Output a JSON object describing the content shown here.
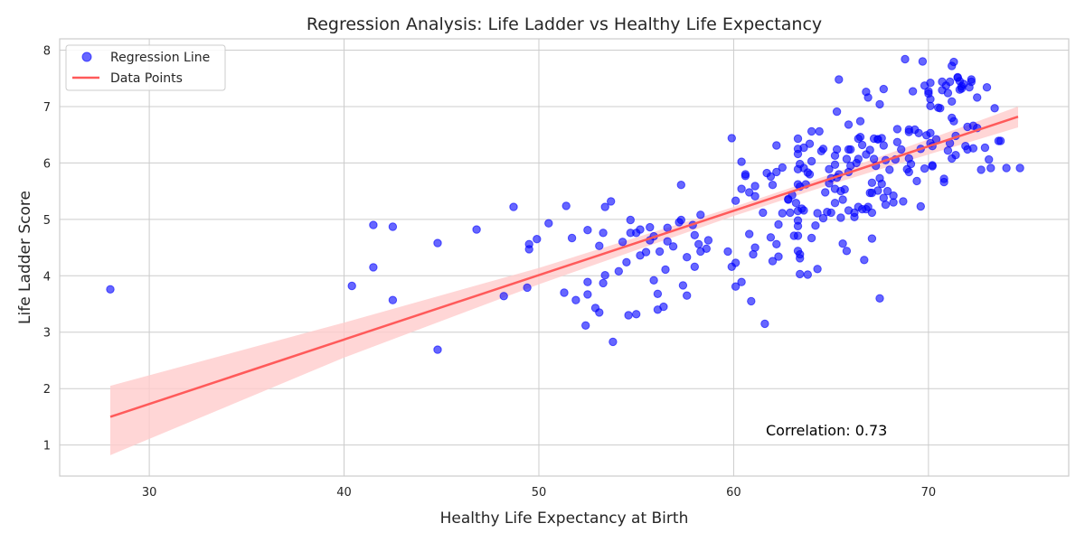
{
  "chart_data": {
    "type": "scatter",
    "title": "Regression Analysis: Life Ladder vs Healthy Life Expectancy",
    "xlabel": "Healthy Life Expectancy at Birth",
    "ylabel": "Life Ladder Score",
    "xlim": [
      25.4,
      77.2
    ],
    "ylim": [
      0.45,
      8.2
    ],
    "xticks": [
      30,
      40,
      50,
      60,
      70
    ],
    "yticks": [
      1,
      2,
      3,
      4,
      5,
      6,
      7,
      8
    ],
    "grid": true,
    "legend": {
      "placement": "top-left",
      "entries": [
        {
          "label": "Regression Line",
          "marker": "scatter"
        },
        {
          "label": "Data Points",
          "marker": "line"
        }
      ]
    },
    "annotation": "Correlation: 0.73",
    "colors": {
      "points": "#0000ff",
      "line": "#ff5a5a",
      "band": "#ffcccc"
    },
    "regression": {
      "x": [
        28.0,
        74.6
      ],
      "y": [
        1.5,
        6.82
      ],
      "ci_lower": [
        0.82,
        6.63
      ],
      "ci_upper": [
        2.05,
        7.0
      ],
      "ci_mid": [
        [
          28.0,
          1.5,
          0.82,
          2.05
        ],
        [
          40.0,
          2.86,
          2.55,
          3.17
        ],
        [
          50.0,
          4.0,
          3.85,
          4.14
        ],
        [
          60.0,
          5.14,
          5.06,
          5.22
        ],
        [
          65.0,
          5.71,
          5.62,
          5.8
        ],
        [
          70.0,
          6.28,
          6.15,
          6.42
        ],
        [
          74.6,
          6.82,
          6.63,
          7.0
        ]
      ]
    },
    "points": [
      [
        28.0,
        3.76
      ],
      [
        40.4,
        3.82
      ],
      [
        41.5,
        4.9
      ],
      [
        41.5,
        4.15
      ],
      [
        42.5,
        4.87
      ],
      [
        42.5,
        3.57
      ],
      [
        44.8,
        4.58
      ],
      [
        44.8,
        2.69
      ],
      [
        46.8,
        4.82
      ],
      [
        48.2,
        3.64
      ],
      [
        48.7,
        5.22
      ],
      [
        49.4,
        3.79
      ],
      [
        49.5,
        4.47
      ],
      [
        49.5,
        4.56
      ],
      [
        49.9,
        4.65
      ],
      [
        50.5,
        4.93
      ],
      [
        51.3,
        3.7
      ],
      [
        51.4,
        5.24
      ],
      [
        51.7,
        4.67
      ],
      [
        51.9,
        3.57
      ],
      [
        52.4,
        3.12
      ],
      [
        52.5,
        3.89
      ],
      [
        52.5,
        4.81
      ],
      [
        52.5,
        3.67
      ],
      [
        52.9,
        3.43
      ],
      [
        53.1,
        4.53
      ],
      [
        53.1,
        3.35
      ],
      [
        53.3,
        3.87
      ],
      [
        53.3,
        4.76
      ],
      [
        53.4,
        4.01
      ],
      [
        53.4,
        5.22
      ],
      [
        53.7,
        5.32
      ],
      [
        53.8,
        2.83
      ],
      [
        54.1,
        4.08
      ],
      [
        54.3,
        4.6
      ],
      [
        54.5,
        4.24
      ],
      [
        54.6,
        3.3
      ],
      [
        54.7,
        4.99
      ],
      [
        54.7,
        4.76
      ],
      [
        55.0,
        4.76
      ],
      [
        55.0,
        3.32
      ],
      [
        55.2,
        4.36
      ],
      [
        55.2,
        4.82
      ],
      [
        55.5,
        4.42
      ],
      [
        55.7,
        4.86
      ],
      [
        55.7,
        4.63
      ],
      [
        55.9,
        3.92
      ],
      [
        55.9,
        4.7
      ],
      [
        56.1,
        3.68
      ],
      [
        56.1,
        3.4
      ],
      [
        56.2,
        4.43
      ],
      [
        56.4,
        3.45
      ],
      [
        56.5,
        4.11
      ],
      [
        56.6,
        4.61
      ],
      [
        56.6,
        4.85
      ],
      [
        56.9,
        4.52
      ],
      [
        57.2,
        4.95
      ],
      [
        57.3,
        5.61
      ],
      [
        57.3,
        4.99
      ],
      [
        57.4,
        3.83
      ],
      [
        57.6,
        4.33
      ],
      [
        57.6,
        3.65
      ],
      [
        57.9,
        4.9
      ],
      [
        58.0,
        4.16
      ],
      [
        58.0,
        4.72
      ],
      [
        58.2,
        4.56
      ],
      [
        58.3,
        4.43
      ],
      [
        58.3,
        5.08
      ],
      [
        58.6,
        4.48
      ],
      [
        58.7,
        4.63
      ],
      [
        59.7,
        4.43
      ],
      [
        59.9,
        6.44
      ],
      [
        59.9,
        4.16
      ],
      [
        60.1,
        4.23
      ],
      [
        60.1,
        3.81
      ],
      [
        60.1,
        5.33
      ],
      [
        60.4,
        3.89
      ],
      [
        60.4,
        6.02
      ],
      [
        60.4,
        5.54
      ],
      [
        60.6,
        5.8
      ],
      [
        60.6,
        5.77
      ],
      [
        60.8,
        4.74
      ],
      [
        60.8,
        5.48
      ],
      [
        60.9,
        3.55
      ],
      [
        61.0,
        4.38
      ],
      [
        61.1,
        5.59
      ],
      [
        61.1,
        5.41
      ],
      [
        61.1,
        4.5
      ],
      [
        61.5,
        5.12
      ],
      [
        61.6,
        3.15
      ],
      [
        61.7,
        5.82
      ],
      [
        61.9,
        4.68
      ],
      [
        61.9,
        5.76
      ],
      [
        62.0,
        5.61
      ],
      [
        62.0,
        4.26
      ],
      [
        62.2,
        5.84
      ],
      [
        62.2,
        6.31
      ],
      [
        62.2,
        4.56
      ],
      [
        62.3,
        4.91
      ],
      [
        62.3,
        4.34
      ],
      [
        62.5,
        5.92
      ],
      [
        62.5,
        5.11
      ],
      [
        62.8,
        5.35
      ],
      [
        62.8,
        5.36
      ],
      [
        62.9,
        5.12
      ],
      [
        63.0,
        5.43
      ],
      [
        63.1,
        4.71
      ],
      [
        63.2,
        5.29
      ],
      [
        63.3,
        6.43
      ],
      [
        63.3,
        6.25
      ],
      [
        63.3,
        6.16
      ],
      [
        63.3,
        5.89
      ],
      [
        63.3,
        5.62
      ],
      [
        63.3,
        5.15
      ],
      [
        63.3,
        4.98
      ],
      [
        63.3,
        4.88
      ],
      [
        63.3,
        4.71
      ],
      [
        63.3,
        4.44
      ],
      [
        63.4,
        5.58
      ],
      [
        63.4,
        5.98
      ],
      [
        63.4,
        4.38
      ],
      [
        63.4,
        4.31
      ],
      [
        63.4,
        4.03
      ],
      [
        63.5,
        5.19
      ],
      [
        63.6,
        6.27
      ],
      [
        63.6,
        5.91
      ],
      [
        63.6,
        5.16
      ],
      [
        63.7,
        5.62
      ],
      [
        63.8,
        4.02
      ],
      [
        63.8,
        5.83
      ],
      [
        63.9,
        6.34
      ],
      [
        63.9,
        5.8
      ],
      [
        64.0,
        4.67
      ],
      [
        64.0,
        6.03
      ],
      [
        64.0,
        6.56
      ],
      [
        64.2,
        4.89
      ],
      [
        64.3,
        5.11
      ],
      [
        64.3,
        4.12
      ],
      [
        64.4,
        6.56
      ],
      [
        64.5,
        6.21
      ],
      [
        64.6,
        5.02
      ],
      [
        64.6,
        6.25
      ],
      [
        64.7,
        5.48
      ],
      [
        64.8,
        5.13
      ],
      [
        64.9,
        5.89
      ],
      [
        64.9,
        5.64
      ],
      [
        65.0,
        5.73
      ],
      [
        65.0,
        5.12
      ],
      [
        65.2,
        5.54
      ],
      [
        65.2,
        5.97
      ],
      [
        65.2,
        6.13
      ],
      [
        65.2,
        5.29
      ],
      [
        65.3,
        6.24
      ],
      [
        65.3,
        6.91
      ],
      [
        65.3,
        5.74
      ],
      [
        65.4,
        7.48
      ],
      [
        65.4,
        5.8
      ],
      [
        65.5,
        5.5
      ],
      [
        65.5,
        5.03
      ],
      [
        65.6,
        4.57
      ],
      [
        65.6,
        5.35
      ],
      [
        65.7,
        5.53
      ],
      [
        65.8,
        4.44
      ],
      [
        65.8,
        6.07
      ],
      [
        65.9,
        6.68
      ],
      [
        65.9,
        5.84
      ],
      [
        65.9,
        6.24
      ],
      [
        65.9,
        5.16
      ],
      [
        66.0,
        5.95
      ],
      [
        66.0,
        6.24
      ],
      [
        66.2,
        5.12
      ],
      [
        66.2,
        5.04
      ],
      [
        66.3,
        6.0
      ],
      [
        66.4,
        6.07
      ],
      [
        66.4,
        6.43
      ],
      [
        66.4,
        5.22
      ],
      [
        66.5,
        6.46
      ],
      [
        66.5,
        6.74
      ],
      [
        66.6,
        5.18
      ],
      [
        66.6,
        6.32
      ],
      [
        66.7,
        4.28
      ],
      [
        66.8,
        6.15
      ],
      [
        66.8,
        7.26
      ],
      [
        66.8,
        5.18
      ],
      [
        66.9,
        7.16
      ],
      [
        66.9,
        5.22
      ],
      [
        67.0,
        6.23
      ],
      [
        67.0,
        5.47
      ],
      [
        67.1,
        5.47
      ],
      [
        67.1,
        5.65
      ],
      [
        67.1,
        4.66
      ],
      [
        67.1,
        5.12
      ],
      [
        67.2,
        6.43
      ],
      [
        67.2,
        6.07
      ],
      [
        67.3,
        5.95
      ],
      [
        67.4,
        6.42
      ],
      [
        67.4,
        5.51
      ],
      [
        67.4,
        6.42
      ],
      [
        67.5,
        7.04
      ],
      [
        67.5,
        3.6
      ],
      [
        67.5,
        5.73
      ],
      [
        67.6,
        6.44
      ],
      [
        67.6,
        5.63
      ],
      [
        67.7,
        6.31
      ],
      [
        67.7,
        7.31
      ],
      [
        67.7,
        5.38
      ],
      [
        67.8,
        6.05
      ],
      [
        67.8,
        5.26
      ],
      [
        67.9,
        5.5
      ],
      [
        68.0,
        5.88
      ],
      [
        68.2,
        5.3
      ],
      [
        68.2,
        5.42
      ],
      [
        68.3,
        6.06
      ],
      [
        68.4,
        6.6
      ],
      [
        68.4,
        6.37
      ],
      [
        68.6,
        6.24
      ],
      [
        68.7,
        5.32
      ],
      [
        68.8,
        7.84
      ],
      [
        68.9,
        5.89
      ],
      [
        69.0,
        6.55
      ],
      [
        69.0,
        6.59
      ],
      [
        69.0,
        5.84
      ],
      [
        69.0,
        6.08
      ],
      [
        69.1,
        5.98
      ],
      [
        69.2,
        7.27
      ],
      [
        69.3,
        6.59
      ],
      [
        69.4,
        5.68
      ],
      [
        69.5,
        6.53
      ],
      [
        69.6,
        5.23
      ],
      [
        69.6,
        6.25
      ],
      [
        69.7,
        7.8
      ],
      [
        69.8,
        5.9
      ],
      [
        69.8,
        7.37
      ],
      [
        69.9,
        6.49
      ],
      [
        70.0,
        7.23
      ],
      [
        70.0,
        7.27
      ],
      [
        70.1,
        7.42
      ],
      [
        70.1,
        7.13
      ],
      [
        70.1,
        7.01
      ],
      [
        70.1,
        6.53
      ],
      [
        70.1,
        6.35
      ],
      [
        70.2,
        6.3
      ],
      [
        70.2,
        5.96
      ],
      [
        70.2,
        5.94
      ],
      [
        70.4,
        6.42
      ],
      [
        70.5,
        6.98
      ],
      [
        70.6,
        6.97
      ],
      [
        70.7,
        7.29
      ],
      [
        70.7,
        7.44
      ],
      [
        70.8,
        5.72
      ],
      [
        70.8,
        5.66
      ],
      [
        70.9,
        7.37
      ],
      [
        71.0,
        6.22
      ],
      [
        71.0,
        7.24
      ],
      [
        71.1,
        6.35
      ],
      [
        71.1,
        7.44
      ],
      [
        71.2,
        7.72
      ],
      [
        71.2,
        7.09
      ],
      [
        71.2,
        6.8
      ],
      [
        71.2,
        6.08
      ],
      [
        71.3,
        7.79
      ],
      [
        71.3,
        6.74
      ],
      [
        71.4,
        6.48
      ],
      [
        71.4,
        6.14
      ],
      [
        71.5,
        7.51
      ],
      [
        71.5,
        7.52
      ],
      [
        71.6,
        7.45
      ],
      [
        71.6,
        7.3
      ],
      [
        71.7,
        7.36
      ],
      [
        71.7,
        7.32
      ],
      [
        71.8,
        7.4
      ],
      [
        71.9,
        6.3
      ],
      [
        72.0,
        6.24
      ],
      [
        72.0,
        6.64
      ],
      [
        72.1,
        7.34
      ],
      [
        72.2,
        7.48
      ],
      [
        72.2,
        7.44
      ],
      [
        72.3,
        6.66
      ],
      [
        72.3,
        6.26
      ],
      [
        72.5,
        6.62
      ],
      [
        72.5,
        7.16
      ],
      [
        72.7,
        5.88
      ],
      [
        72.9,
        6.27
      ],
      [
        73.0,
        7.34
      ],
      [
        73.1,
        6.06
      ],
      [
        73.2,
        5.91
      ],
      [
        73.4,
        6.97
      ],
      [
        73.6,
        6.39
      ],
      [
        73.7,
        6.39
      ],
      [
        74.0,
        5.91
      ],
      [
        74.7,
        5.91
      ]
    ]
  }
}
